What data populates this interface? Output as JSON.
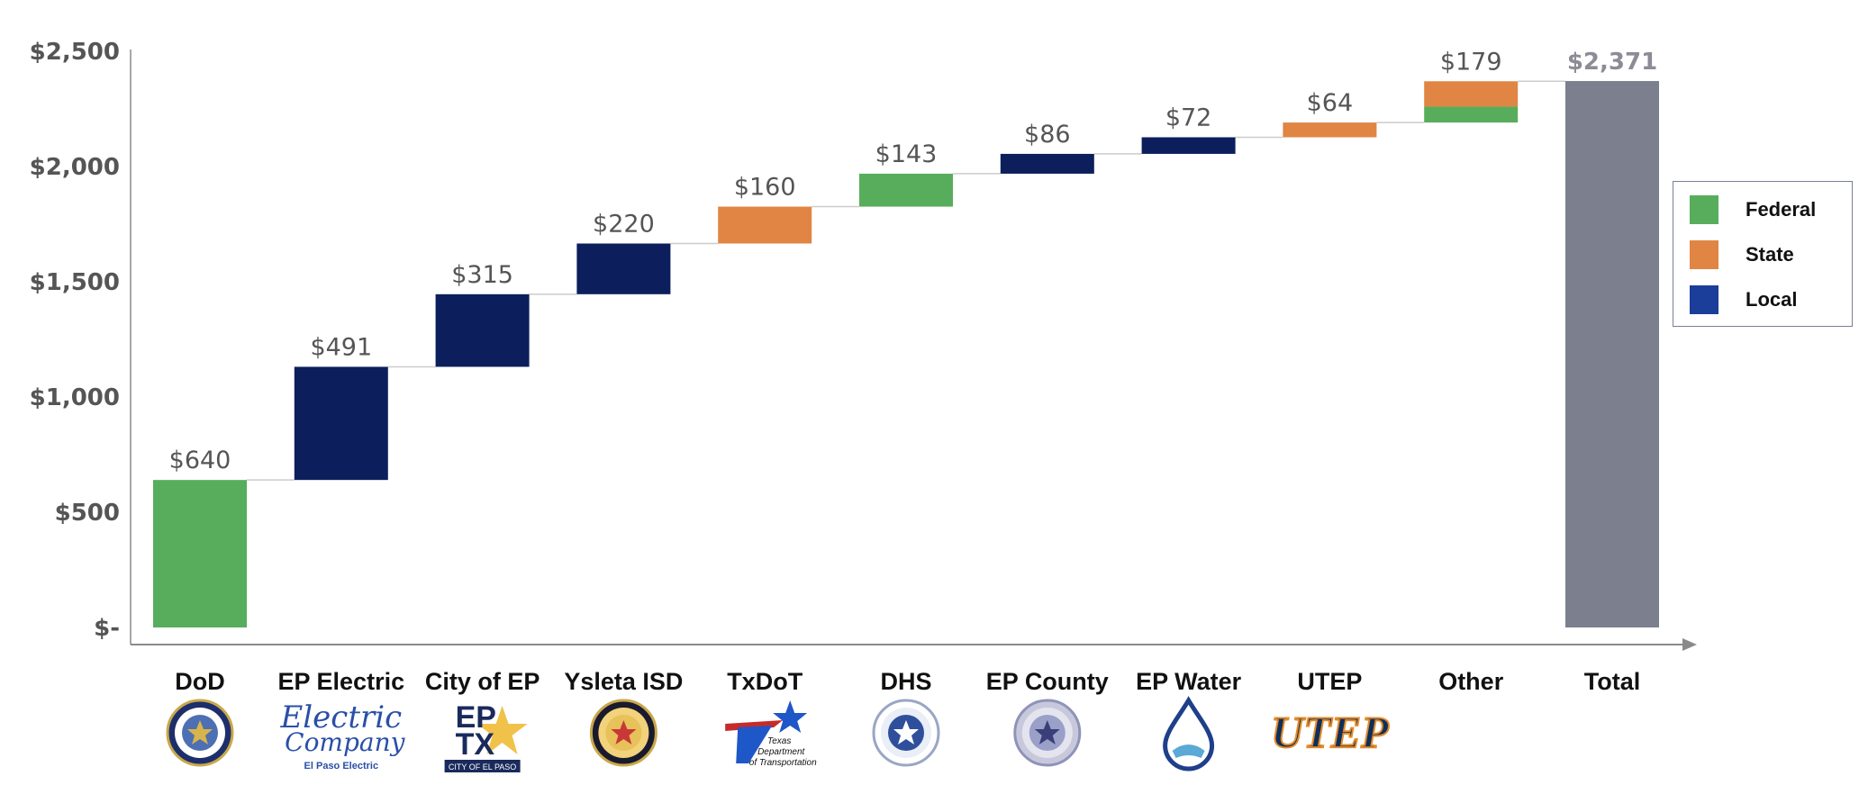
{
  "colors": {
    "federal": "#57ad5b",
    "state": "#e08543",
    "local": "#0c1f5c",
    "total": "#7b7f8e",
    "legend_local": "#1b3e9a",
    "axis": "#8a8a8a",
    "connector": "#cccccc"
  },
  "legend": {
    "items": [
      {
        "label": "Federal",
        "color": "#57ad5b"
      },
      {
        "label": "State",
        "color": "#e08543"
      },
      {
        "label": "Local",
        "color": "#1b3e9a"
      }
    ]
  },
  "chart_data": {
    "type": "bar",
    "subtype": "waterfall",
    "categories": [
      "DoD",
      "EP Electric",
      "City of EP",
      "Ysleta ISD",
      "TxDoT",
      "DHS",
      "EP County",
      "EP Water",
      "UTEP",
      "Other",
      "Total"
    ],
    "ylim": [
      0,
      2500
    ],
    "yticks": [
      0,
      500,
      1000,
      1500,
      2000,
      2500
    ],
    "ytick_labels": [
      "$-",
      "$500",
      "$1,000",
      "$1,500",
      "$2,000",
      "$2,500"
    ],
    "legend_position": "right",
    "grid": false,
    "bars": [
      {
        "category": "DoD",
        "value": 640,
        "label": "$640",
        "segments": [
          {
            "type": "federal",
            "value": 640
          }
        ]
      },
      {
        "category": "EP Electric",
        "value": 491,
        "label": "$491",
        "segments": [
          {
            "type": "local",
            "value": 491
          }
        ]
      },
      {
        "category": "City of EP",
        "value": 315,
        "label": "$315",
        "segments": [
          {
            "type": "local",
            "value": 315
          }
        ]
      },
      {
        "category": "Ysleta ISD",
        "value": 220,
        "label": "$220",
        "segments": [
          {
            "type": "local",
            "value": 220
          }
        ]
      },
      {
        "category": "TxDoT",
        "value": 160,
        "label": "$160",
        "segments": [
          {
            "type": "state",
            "value": 160
          }
        ]
      },
      {
        "category": "DHS",
        "value": 143,
        "label": "$143",
        "segments": [
          {
            "type": "federal",
            "value": 143
          }
        ]
      },
      {
        "category": "EP County",
        "value": 86,
        "label": "$86",
        "segments": [
          {
            "type": "local",
            "value": 86
          }
        ]
      },
      {
        "category": "EP Water",
        "value": 72,
        "label": "$72",
        "segments": [
          {
            "type": "local",
            "value": 72
          }
        ]
      },
      {
        "category": "UTEP",
        "value": 64,
        "label": "$64",
        "segments": [
          {
            "type": "state",
            "value": 64
          }
        ]
      },
      {
        "category": "Other",
        "value": 179,
        "label": "$179",
        "segments": [
          {
            "type": "federal",
            "value": 69
          },
          {
            "type": "state",
            "value": 110
          }
        ]
      },
      {
        "category": "Total",
        "value": 2371,
        "label": "$2,371",
        "is_total": true,
        "segments": [
          {
            "type": "total",
            "value": 2371
          }
        ]
      }
    ]
  },
  "logos": [
    {
      "category": "DoD",
      "icon": "dod-seal-icon"
    },
    {
      "category": "EP Electric",
      "icon": "el-paso-electric-logo",
      "text": "El Paso Electric"
    },
    {
      "category": "City of EP",
      "icon": "city-of-el-paso-logo",
      "text": "CITY OF EL PASO"
    },
    {
      "category": "Ysleta ISD",
      "icon": "ysleta-isd-seal-icon"
    },
    {
      "category": "TxDoT",
      "icon": "txdot-logo",
      "text": "Texas Department of Transportation"
    },
    {
      "category": "DHS",
      "icon": "dhs-seal-icon"
    },
    {
      "category": "EP County",
      "icon": "county-seal-icon"
    },
    {
      "category": "EP Water",
      "icon": "water-drop-icon"
    },
    {
      "category": "UTEP",
      "icon": "utep-logo",
      "text": "UTEP"
    }
  ]
}
